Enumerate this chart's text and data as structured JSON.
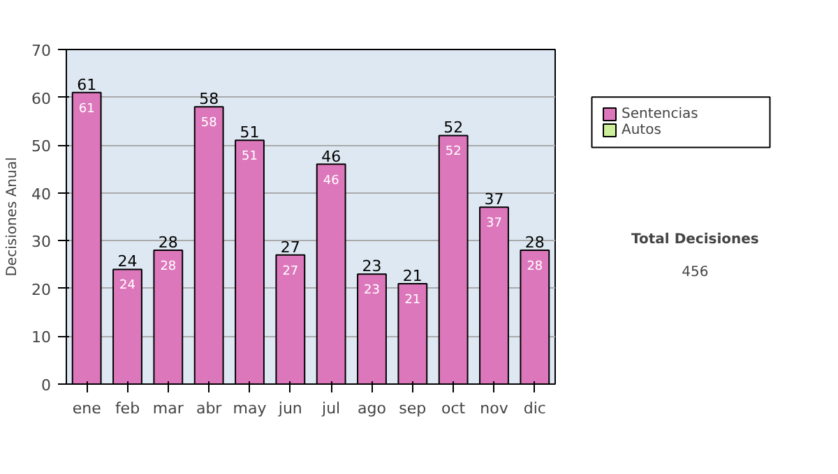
{
  "chart_data": {
    "type": "bar",
    "stacked": true,
    "ylabel": "Decisiones Anual",
    "categories": [
      "ene",
      "feb",
      "mar",
      "abr",
      "may",
      "jun",
      "jul",
      "ago",
      "sep",
      "oct",
      "nov",
      "dic"
    ],
    "series": [
      {
        "name": "Sentencias",
        "color": "#dd77bb",
        "values": [
          61,
          24,
          28,
          58,
          51,
          27,
          46,
          23,
          21,
          52,
          37,
          28
        ]
      },
      {
        "name": "Autos",
        "color": "#ccee99",
        "values": [
          null,
          null,
          null,
          null,
          null,
          null,
          null,
          null,
          null,
          null,
          null,
          null
        ]
      }
    ],
    "ylim": [
      0,
      70
    ],
    "yticks": [
      0,
      10,
      20,
      30,
      40,
      50,
      60,
      70
    ],
    "grid": "y",
    "legend": "right",
    "data_labels": true,
    "totals": [
      "61",
      "24",
      "28",
      "58",
      "51",
      "27",
      "46",
      "23",
      "21",
      "52",
      "37",
      "28"
    ],
    "annotations": [
      "Total Decisiones",
      "456"
    ]
  }
}
